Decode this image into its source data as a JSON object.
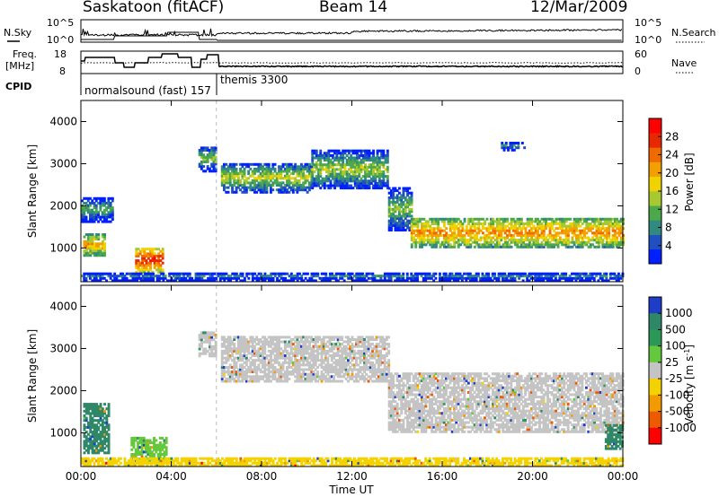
{
  "header": {
    "station": "Saskatoon (fitACF)",
    "beam": "Beam 14",
    "date": "12/Mar/2009"
  },
  "top_panels": {
    "nsky_label": "N.Sky",
    "nsearch_label": "N.Search",
    "left_ticks": [
      "10^5",
      "10^0"
    ],
    "right_ticks": [
      "10^5",
      "10^0"
    ],
    "freq_label_line1": "Freq.",
    "freq_label_line2": "[MHz]",
    "freq_ticks": [
      "18",
      "8"
    ],
    "nave_label": "Nave",
    "nave_ticks": [
      "60",
      "0"
    ],
    "cpid_label": "CPID",
    "cpid_entries": [
      {
        "text": "normalsound (fast) 157",
        "start_hour": 0.0
      },
      {
        "text": "themis 3300",
        "start_hour": 6.0
      }
    ]
  },
  "chart_data": [
    {
      "type": "heatmap",
      "name": "power",
      "xlabel": "Time UT",
      "ylabel": "Slant Range [km]",
      "x_range_hours": [
        0,
        24
      ],
      "ylim": [
        200,
        4500
      ],
      "y_ticks": [
        "1000",
        "2000",
        "3000",
        "4000"
      ],
      "colorbar_label": "Power [dB]",
      "colorbar_ticks": [
        "4",
        "8",
        "12",
        "16",
        "20",
        "24",
        "28"
      ],
      "colorbar_colors": [
        "#0020ff",
        "#2050c0",
        "#308a80",
        "#4ca84a",
        "#a8c832",
        "#f0d200",
        "#f2a000",
        "#f06a00",
        "#e82800",
        "#ff0000"
      ],
      "regions": [
        {
          "t0": 0.1,
          "t1": 1.0,
          "r0": 800,
          "r1": 1300,
          "value": 22
        },
        {
          "t0": 0.0,
          "t1": 1.4,
          "r0": 1600,
          "r1": 2200,
          "value": 12
        },
        {
          "t0": 2.4,
          "t1": 3.6,
          "r0": 400,
          "r1": 1000,
          "value": 28
        },
        {
          "t0": 5.2,
          "t1": 6.0,
          "r0": 2800,
          "r1": 3400,
          "value": 14
        },
        {
          "t0": 6.2,
          "t1": 10.2,
          "r0": 2300,
          "r1": 3000,
          "value": 16
        },
        {
          "t0": 10.2,
          "t1": 13.6,
          "r0": 2400,
          "r1": 3300,
          "value": 15
        },
        {
          "t0": 13.6,
          "t1": 14.6,
          "r0": 1400,
          "r1": 2400,
          "value": 14
        },
        {
          "t0": 14.6,
          "t1": 24.0,
          "r0": 1000,
          "r1": 1700,
          "value": 23
        },
        {
          "t0": 18.6,
          "t1": 19.6,
          "r0": 3300,
          "r1": 3500,
          "value": 10
        },
        {
          "t0": 0.0,
          "t1": 24.0,
          "r0": 200,
          "r1": 420,
          "value": 8
        }
      ]
    },
    {
      "type": "heatmap",
      "name": "velocity",
      "xlabel": "Time UT",
      "ylabel": "Slant Range [km]",
      "x_range_hours": [
        0,
        24
      ],
      "ylim": [
        200,
        4500
      ],
      "y_ticks": [
        "1000",
        "2000",
        "3000",
        "4000"
      ],
      "colorbar_label": "Velocity [m s",
      "colorbar_label_sup": "-1",
      "colorbar_label_end": "]",
      "colorbar_ticks": [
        "1000",
        "500",
        "100",
        "25",
        "-25",
        "-100",
        "-500",
        "-1000"
      ],
      "colorbar_colors": [
        "#1f3ec8",
        "#2e8868",
        "#2c9858",
        "#64c83c",
        "#c4c4c4",
        "#f4d200",
        "#f29a00",
        "#ee5a00",
        "#ff0000"
      ],
      "regions": [
        {
          "t0": 0.1,
          "t1": 1.2,
          "r0": 500,
          "r1": 1700,
          "value": 300
        },
        {
          "t0": 2.2,
          "t1": 3.8,
          "r0": 300,
          "r1": 900,
          "value": 60
        },
        {
          "t0": 5.2,
          "t1": 6.0,
          "r0": 2800,
          "r1": 3400,
          "value": 0
        },
        {
          "t0": 6.2,
          "t1": 13.6,
          "r0": 2200,
          "r1": 3300,
          "value": 0
        },
        {
          "t0": 13.6,
          "t1": 24.0,
          "r0": 1000,
          "r1": 2400,
          "value": 0
        },
        {
          "t0": 23.2,
          "t1": 24.0,
          "r0": 600,
          "r1": 1200,
          "value": 300
        },
        {
          "t0": 0.0,
          "t1": 24.0,
          "r0": 200,
          "r1": 420,
          "value": -80
        }
      ]
    }
  ],
  "x_ticks": [
    "00:00",
    "04:00",
    "08:00",
    "12:00",
    "16:00",
    "20:00",
    "00:00"
  ],
  "x_tick_hours": [
    0,
    4,
    8,
    12,
    16,
    20,
    24
  ],
  "x_axis_label": "Time UT"
}
